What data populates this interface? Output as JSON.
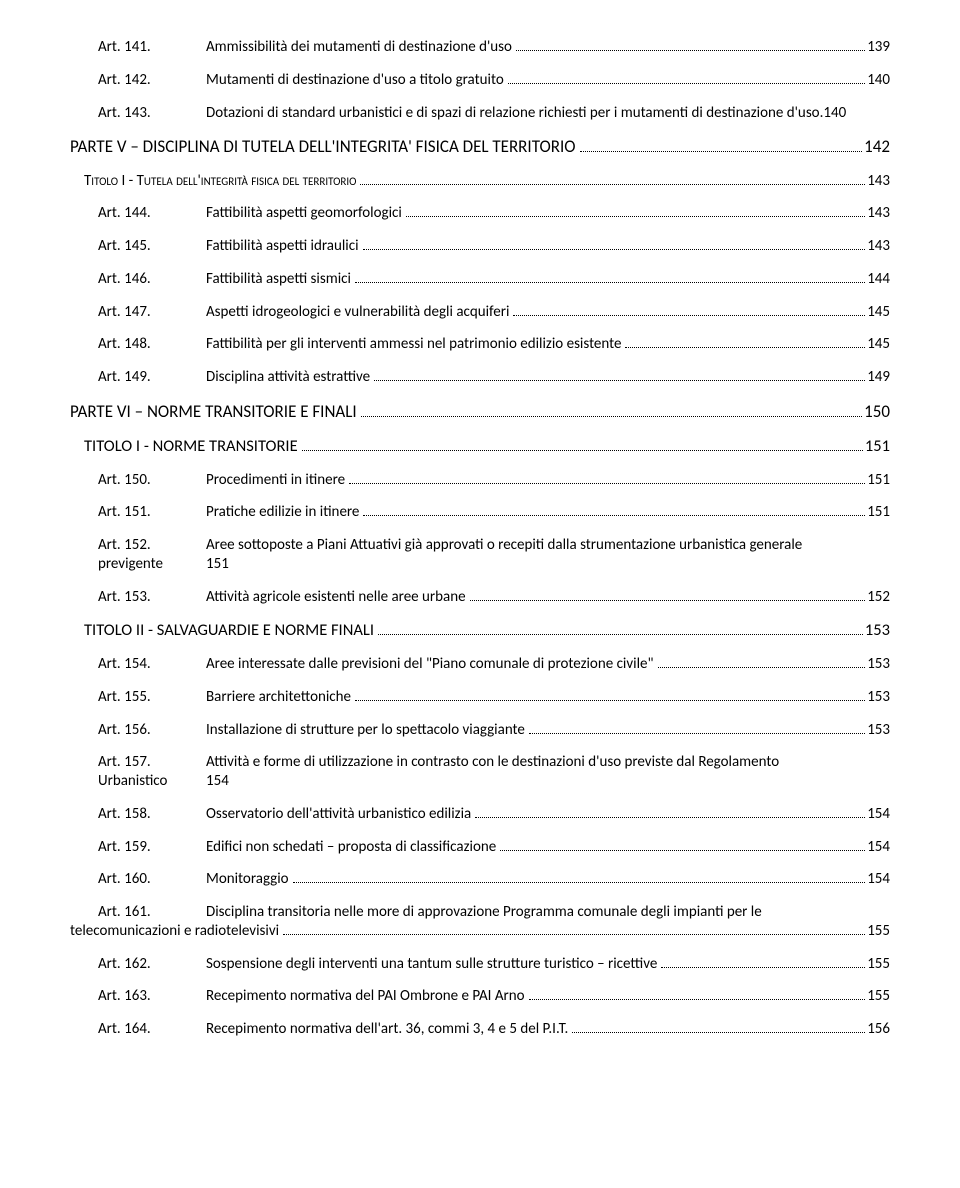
{
  "entries": [
    {
      "type": "art",
      "label": "Art. 141.",
      "desc": "Ammissibilità dei mutamenti di destinazione d'uso",
      "page": "139"
    },
    {
      "type": "art",
      "label": "Art. 142.",
      "desc": "Mutamenti di destinazione d'uso a titolo gratuito",
      "page": "140"
    },
    {
      "type": "art",
      "label": "Art. 143.",
      "desc": "Dotazioni di standard urbanistici e di spazi di relazione richiesti per i mutamenti di destinazione d'uso.140",
      "page": null,
      "noDots": true
    },
    {
      "type": "part",
      "label": "",
      "desc": "PARTE V – DISCIPLINA DI TUTELA DELL'INTEGRITA' FISICA DEL TERRITORIO",
      "page": "142"
    },
    {
      "type": "title-sc",
      "label": "",
      "desc": "Titolo I - Tutela dell'integrità fisica del territorio",
      "page": " 143"
    },
    {
      "type": "art",
      "label": "Art. 144.",
      "desc": "Fattibilità aspetti geomorfologici",
      "page": "143"
    },
    {
      "type": "art",
      "label": "Art. 145.",
      "desc": "Fattibilità aspetti idraulici",
      "page": "143"
    },
    {
      "type": "art",
      "label": "Art. 146.",
      "desc": "Fattibilità aspetti sismici",
      "page": "144"
    },
    {
      "type": "art",
      "label": "Art. 147.",
      "desc": "Aspetti idrogeologici e vulnerabilità degli acquiferi",
      "page": "145"
    },
    {
      "type": "art",
      "label": "Art. 148.",
      "desc": "Fattibilità per gli interventi ammessi nel patrimonio edilizio esistente",
      "page": "145"
    },
    {
      "type": "art",
      "label": "Art. 149.",
      "desc": "Disciplina attività estrattive",
      "page": "149"
    },
    {
      "type": "part",
      "label": "",
      "desc": "PARTE VI – NORME TRANSITORIE E FINALI",
      "page": "150"
    },
    {
      "type": "title",
      "label": "",
      "desc": "TITOLO I - NORME TRANSITORIE",
      "page": " 151"
    },
    {
      "type": "art",
      "label": "Art. 150.",
      "desc": "Procedimenti in itinere",
      "page": "151"
    },
    {
      "type": "art",
      "label": "Art. 151.",
      "desc": "Pratiche edilizie in itinere",
      "page": "151"
    },
    {
      "type": "art-ml",
      "label": "Art. 152.",
      "desc": "Aree sottoposte a Piani Attuativi già approvati o recepiti dalla strumentazione urbanistica generale",
      "label2": "previgente",
      "page2": "151"
    },
    {
      "type": "art",
      "label": "Art. 153.",
      "desc": "Attività agricole esistenti nelle aree urbane",
      "page": "152"
    },
    {
      "type": "title",
      "label": "",
      "desc": "TITOLO II - SALVAGUARDIE E NORME FINALI",
      "page": " 153"
    },
    {
      "type": "art",
      "label": "Art. 154.",
      "desc": "Aree interessate dalle previsioni del \"Piano comunale di protezione civile\"",
      "page": "153"
    },
    {
      "type": "art",
      "label": "Art. 155.",
      "desc": "Barriere architettoniche",
      "page": "153"
    },
    {
      "type": "art",
      "label": "Art. 156.",
      "desc": "Installazione di strutture per lo spettacolo viaggiante",
      "page": "153"
    },
    {
      "type": "art-ml",
      "label": "Art. 157.",
      "desc": "Attività e forme di utilizzazione in contrasto con le destinazioni d'uso previste dal Regolamento",
      "label2": "Urbanistico",
      "page2": "154"
    },
    {
      "type": "art",
      "label": "Art. 158.",
      "desc": "Osservatorio dell'attività urbanistico edilizia",
      "page": "154"
    },
    {
      "type": "art",
      "label": "Art. 159.",
      "desc": "Edifici non schedati – proposta di classificazione",
      "page": "154"
    },
    {
      "type": "art",
      "label": "Art. 160.",
      "desc": "Monitoraggio",
      "page": "154"
    },
    {
      "type": "art-ml2",
      "label": "Art. 161.",
      "desc": "Disciplina transitoria nelle more di approvazione Programma comunale degli impianti per le",
      "cont": "telecomunicazioni e radiotelevisivi",
      "page": "155"
    },
    {
      "type": "art",
      "label": "Art. 162.",
      "desc": "Sospensione degli interventi una tantum sulle strutture turistico – ricettive",
      "page": "155"
    },
    {
      "type": "art",
      "label": "Art. 163.",
      "desc": "Recepimento normativa del PAI Ombrone e PAI Arno",
      "page": "155"
    },
    {
      "type": "art",
      "label": "Art. 164.",
      "desc": "Recepimento normativa dell'art. 36, commi 3, 4 e 5 del P.I.T.",
      "page": "156"
    }
  ]
}
